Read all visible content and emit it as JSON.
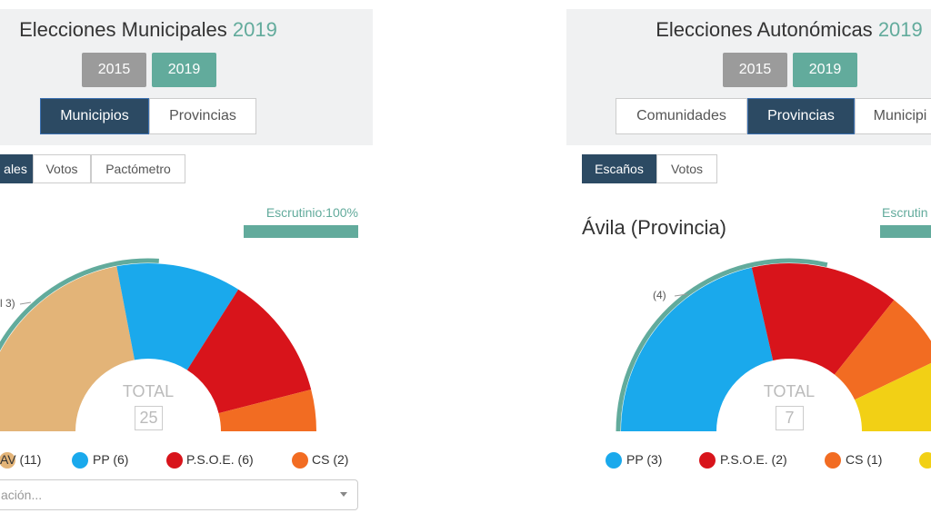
{
  "panels": [
    {
      "title": "Elecciones Municipales",
      "title_year": "2019",
      "years": [
        "2015",
        "2019"
      ],
      "active_year": 1,
      "tabs": [
        "Municipios",
        "Provincias"
      ],
      "active_tab": 0,
      "subtabs": [
        "ales",
        "Votos",
        "Pactómetro"
      ],
      "active_subtab": 0,
      "progress_label": "Escrutinio:100%",
      "progress": 100,
      "majority_label": "l 3)",
      "majority": 13,
      "total_label": "TOTAL",
      "total": 25,
      "parties": [
        {
          "label": "AV (11)",
          "seats": 11,
          "color": "#e3b478"
        },
        {
          "label": "PP (6)",
          "seats": 6,
          "color": "#1aa9ec"
        },
        {
          "label": "P.S.O.E. (6)",
          "seats": 6,
          "color": "#d8141b"
        },
        {
          "label": "CS (2)",
          "seats": 2,
          "color": "#f26c22"
        }
      ],
      "search": "ación..."
    },
    {
      "title": "Elecciones Autonómicas",
      "title_year": "2019",
      "years": [
        "2015",
        "2019"
      ],
      "active_year": 1,
      "tabs": [
        "Comunidades",
        "Provincias",
        "Municipi"
      ],
      "active_tab": 1,
      "subtabs": [
        "Escaños",
        "Votos"
      ],
      "active_subtab": 0,
      "progress_label": "Escrutin",
      "progress": 100,
      "heading": "Ávila (Provincia)",
      "majority_label": "(4)",
      "majority": 4,
      "total_label": "TOTAL",
      "total": 7,
      "parties": [
        {
          "label": "PP (3)",
          "seats": 3,
          "color": "#1aa9ec"
        },
        {
          "label": "P.S.O.E. (2)",
          "seats": 2,
          "color": "#d8141b"
        },
        {
          "label": "CS (1)",
          "seats": 1,
          "color": "#f26c22"
        },
        {
          "seats": 1,
          "color": "#f2d015"
        }
      ]
    }
  ]
}
